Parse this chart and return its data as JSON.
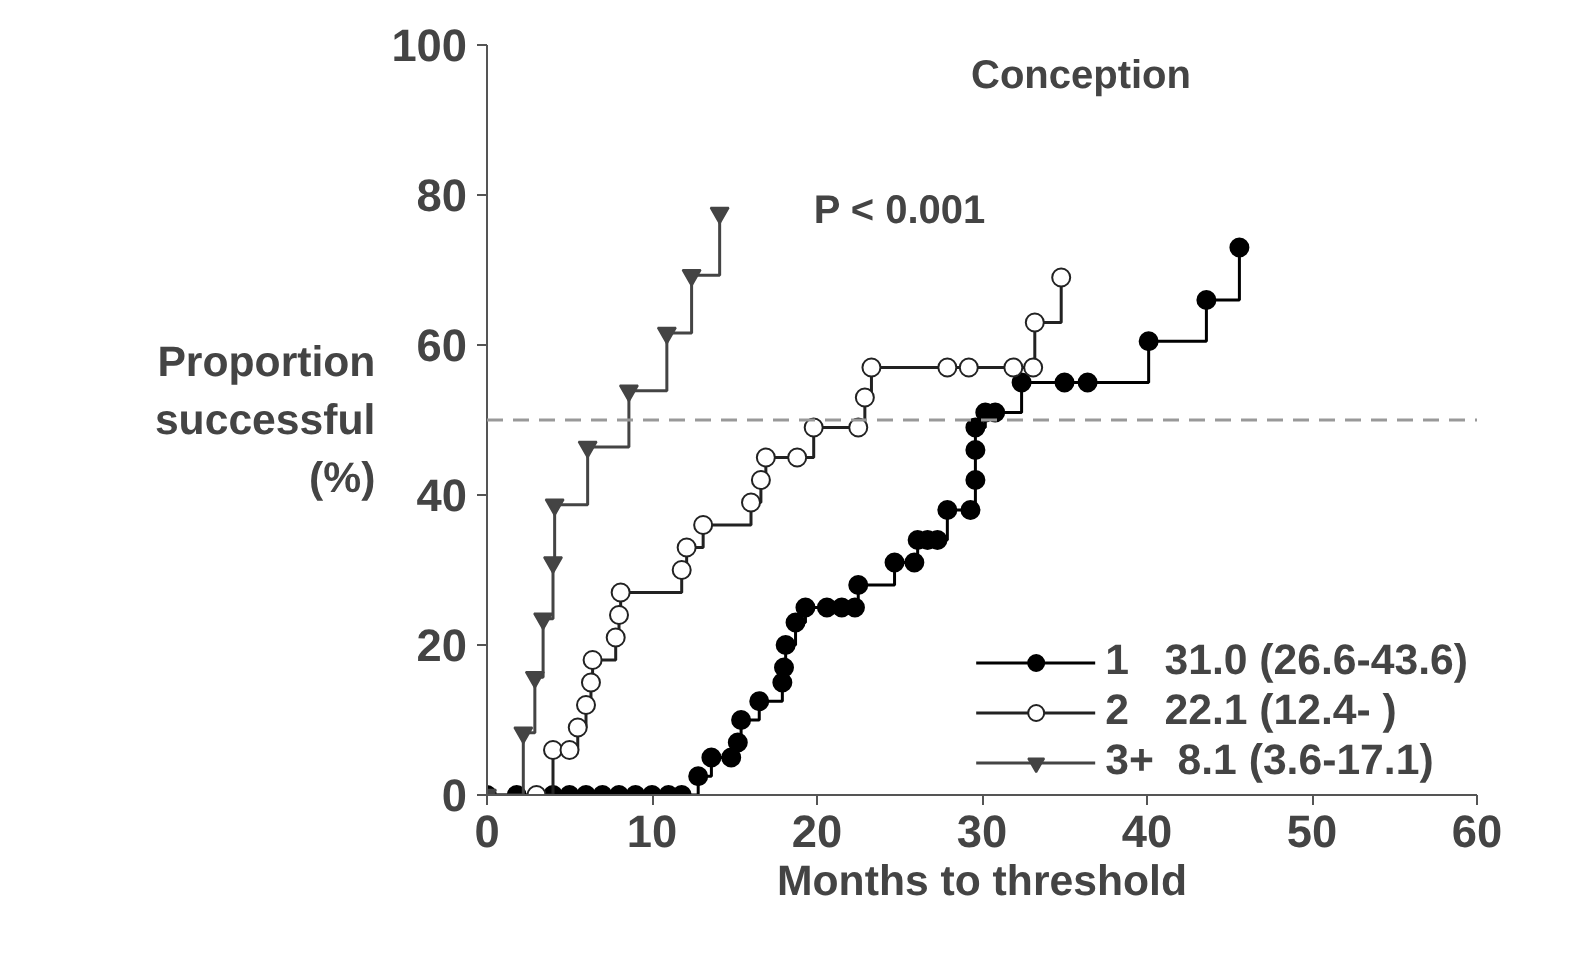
{
  "chart_data": {
    "type": "step",
    "title": "Conception",
    "xlabel": "Months to threshold",
    "ylabel": "Proportion\nsuccessful\n(%)",
    "annotations": [
      "P < 0.001"
    ],
    "xlim": [
      0,
      60
    ],
    "ylim": [
      0,
      100
    ],
    "xticks": [
      0,
      10,
      20,
      30,
      40,
      50,
      60
    ],
    "yticks": [
      0,
      20,
      40,
      60,
      80,
      100
    ],
    "grid": false,
    "legend": "bottom right",
    "ref_lines": [
      {
        "axis": "y",
        "value": 50,
        "color": "#999999",
        "line_style": "dashed"
      }
    ],
    "series": [
      {
        "name": "1   31.0 (26.6-43.6)",
        "color": "#000000",
        "marker": "circle",
        "x": [
          0,
          1.8,
          4,
          5,
          6,
          7,
          8,
          9,
          10,
          11,
          11.8,
          12.8,
          13.6,
          14.8,
          15.2,
          15.4,
          16.5,
          17.9,
          18,
          18.1,
          18.7,
          19.3,
          20.6,
          21.5,
          22.3,
          22.5,
          24.7,
          25.9,
          26.1,
          26.7,
          27.3,
          27.9,
          29.3,
          29.6,
          29.6,
          29.6,
          30.2,
          30.8,
          32.4,
          35,
          36.4,
          40.1,
          43.6,
          45.6
        ],
        "values": [
          0,
          0,
          0,
          0,
          0,
          0,
          0,
          0,
          0,
          0,
          0,
          2.5,
          5,
          5,
          7,
          10,
          12.5,
          15,
          17,
          20,
          23,
          25,
          25,
          25,
          25,
          28,
          31,
          31,
          34,
          34,
          34,
          38,
          38,
          42,
          46,
          49,
          51,
          51,
          55,
          55,
          55,
          60.5,
          66,
          73
        ]
      },
      {
        "name": "2   22.1 (12.4- )",
        "color": "#222222",
        "marker": "circle_open",
        "x": [
          3,
          4,
          5,
          5.5,
          6,
          6.3,
          6.4,
          7.8,
          8,
          8.1,
          11.8,
          12.1,
          13.1,
          16,
          16.6,
          16.9,
          18.8,
          19.8,
          22.5,
          22.9,
          23.3,
          27.9,
          29.2,
          31.9,
          33.1,
          33.2,
          34.8
        ],
        "values": [
          0,
          6,
          6,
          9,
          12,
          15,
          18,
          21,
          24,
          27,
          30,
          33,
          36,
          39,
          42,
          45,
          45,
          49,
          49,
          53,
          57,
          57,
          57,
          57,
          57,
          63,
          69
        ]
      },
      {
        "name": "3+  8.1 (3.6-17.1)",
        "color": "#444444",
        "marker": "triangle",
        "x": [
          0,
          2.2,
          2.9,
          3.4,
          4.0,
          4.1,
          6.1,
          8.6,
          10.9,
          12.4,
          14.1
        ],
        "values": [
          0,
          8.3,
          15.7,
          23.5,
          31,
          38.7,
          46.4,
          53.9,
          61.6,
          69.3,
          77.6
        ]
      }
    ]
  }
}
